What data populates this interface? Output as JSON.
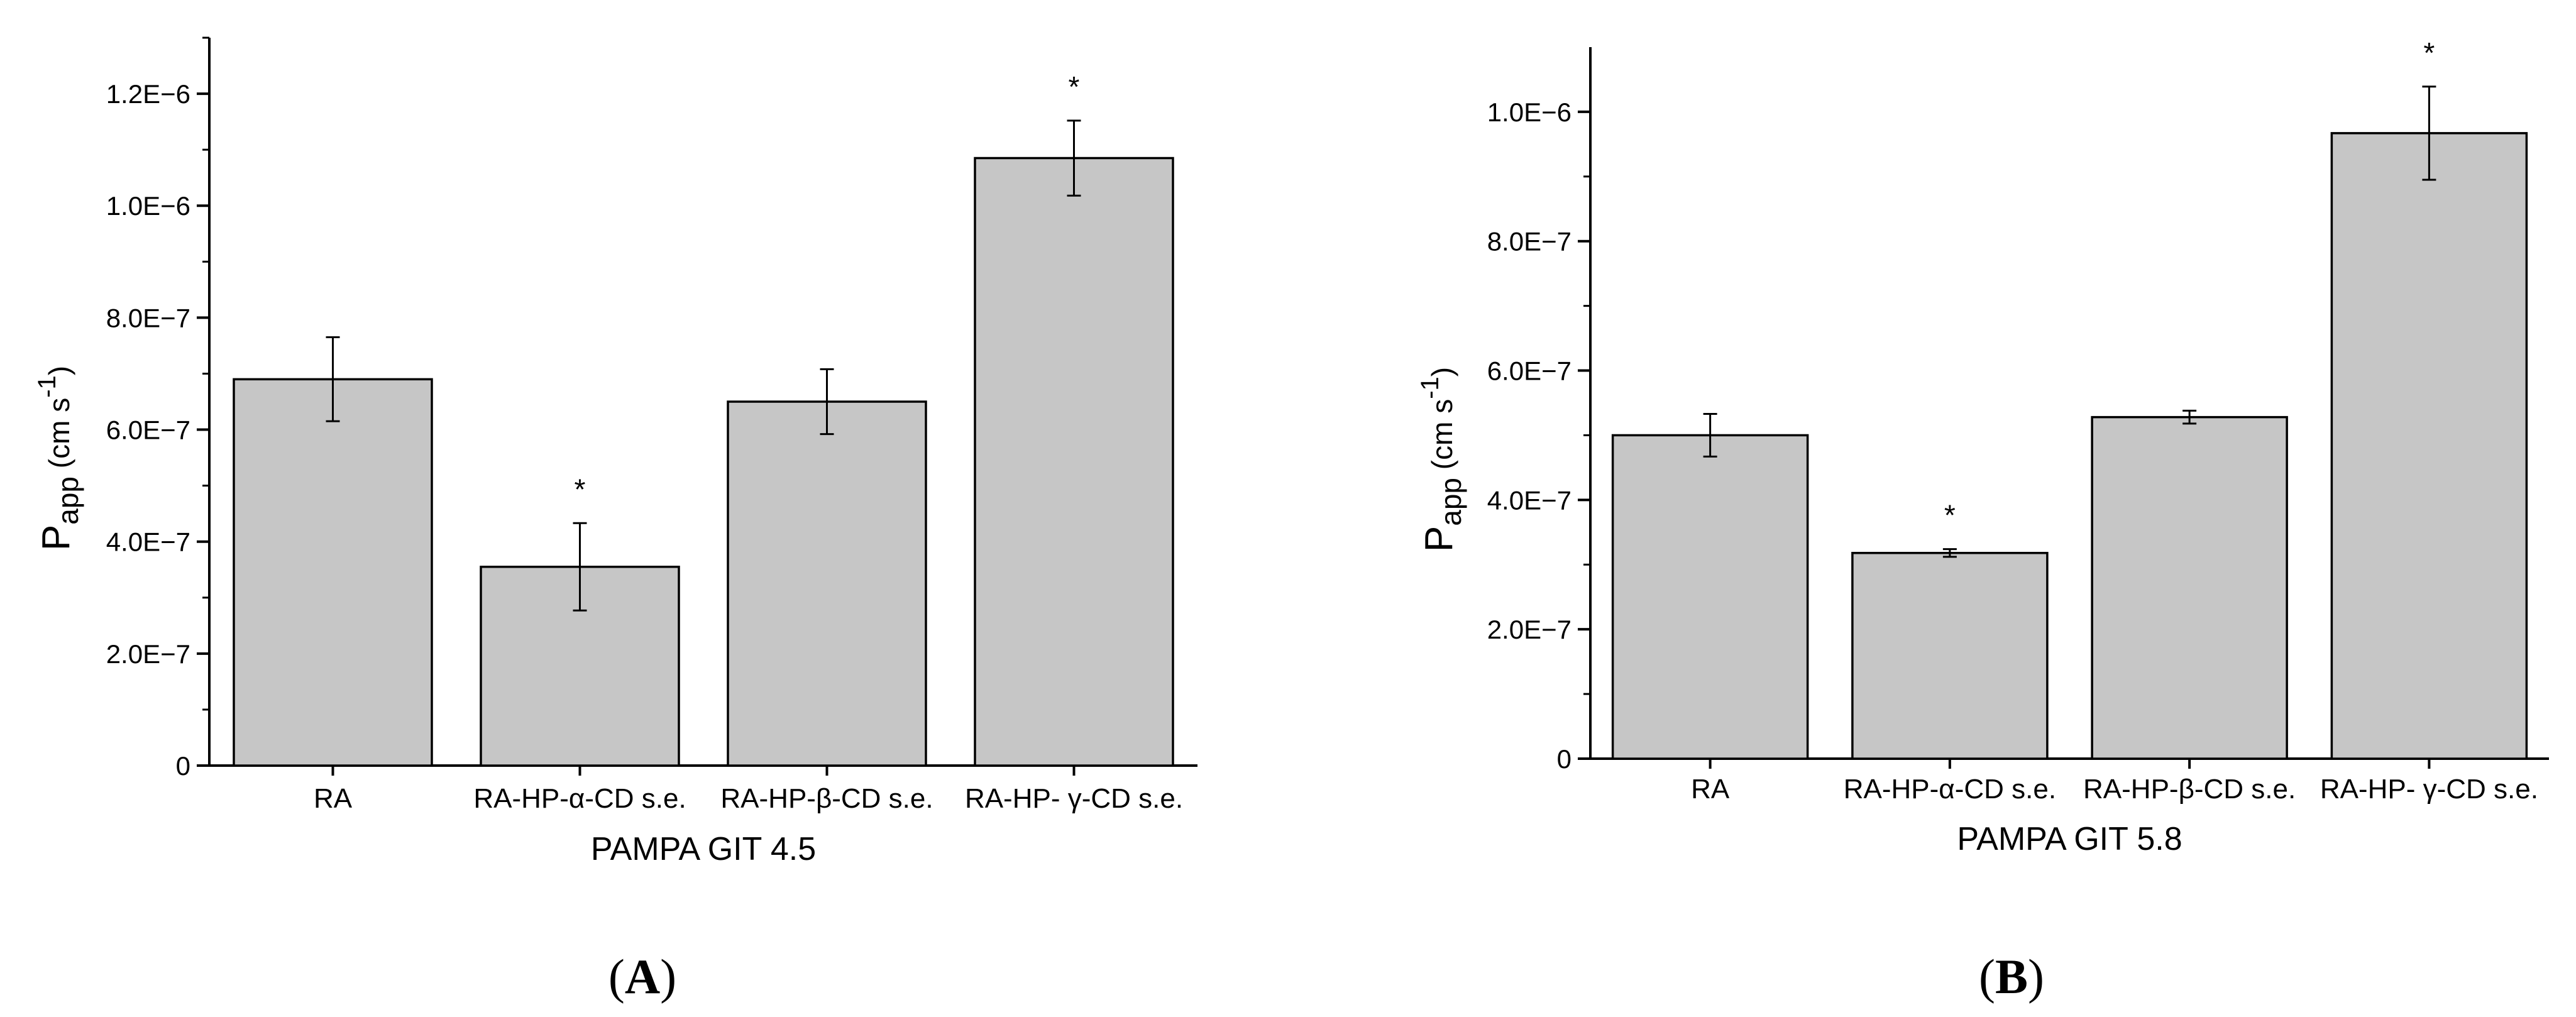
{
  "chart_data": [
    {
      "type": "bar",
      "panel": "A",
      "xlabel": "PAMPA GIT 4.5",
      "ylabel": {
        "main": "P",
        "sub": "app",
        "unit_prefix": "(cm s",
        "unit_sup": "-1",
        "unit_suffix": ")"
      },
      "categories": [
        "RA",
        "RA-HP-α-CD s.e.",
        "RA-HP-β-CD s.e.",
        "RA-HP- γ-CD s.e."
      ],
      "values": [
        6.9e-07,
        3.55e-07,
        6.5e-07,
        1.085e-06
      ],
      "errors": [
        7.5e-08,
        7.8e-08,
        5.8e-08,
        6.7e-08
      ],
      "significant": [
        false,
        true,
        false,
        true
      ],
      "significance_marker": "*",
      "ylim": [
        0,
        1.3e-06
      ],
      "yticks": [
        0,
        2e-07,
        4e-07,
        6e-07,
        8e-07,
        1e-06,
        1.2e-06
      ],
      "ytick_labels": [
        "0",
        "2.0E−7",
        "4.0E−7",
        "6.0E−7",
        "8.0E−7",
        "1.0E−6",
        "1.2E−6"
      ],
      "grid": false,
      "bar_color": "#c6c6c6"
    },
    {
      "type": "bar",
      "panel": "B",
      "xlabel": "PAMPA GIT 5.8",
      "ylabel": {
        "main": "P",
        "sub": "app",
        "unit_prefix": "(cm s",
        "unit_sup": "-1",
        "unit_suffix": ")"
      },
      "categories": [
        "RA",
        "RA-HP-α-CD s.e.",
        "RA-HP-β-CD s.e.",
        "RA-HP- γ-CD s.e."
      ],
      "values": [
        5e-07,
        3.18e-07,
        5.28e-07,
        9.67e-07
      ],
      "errors": [
        3.3e-08,
        6e-09,
        1e-08,
        7.2e-08
      ],
      "significant": [
        false,
        true,
        false,
        true
      ],
      "significance_marker": "*",
      "ylim": [
        0,
        1.1e-06
      ],
      "yticks": [
        0,
        2e-07,
        4e-07,
        6e-07,
        8e-07,
        1e-06
      ],
      "ytick_labels": [
        "0",
        "2.0E−7",
        "4.0E−7",
        "6.0E−7",
        "8.0E−7",
        "1.0E−6"
      ],
      "grid": false,
      "bar_color": "#c6c6c6"
    }
  ],
  "panel_labels": {
    "a": {
      "open": "(",
      "letter": "A",
      "close": ")"
    },
    "b": {
      "open": "(",
      "letter": "B",
      "close": ")"
    }
  }
}
